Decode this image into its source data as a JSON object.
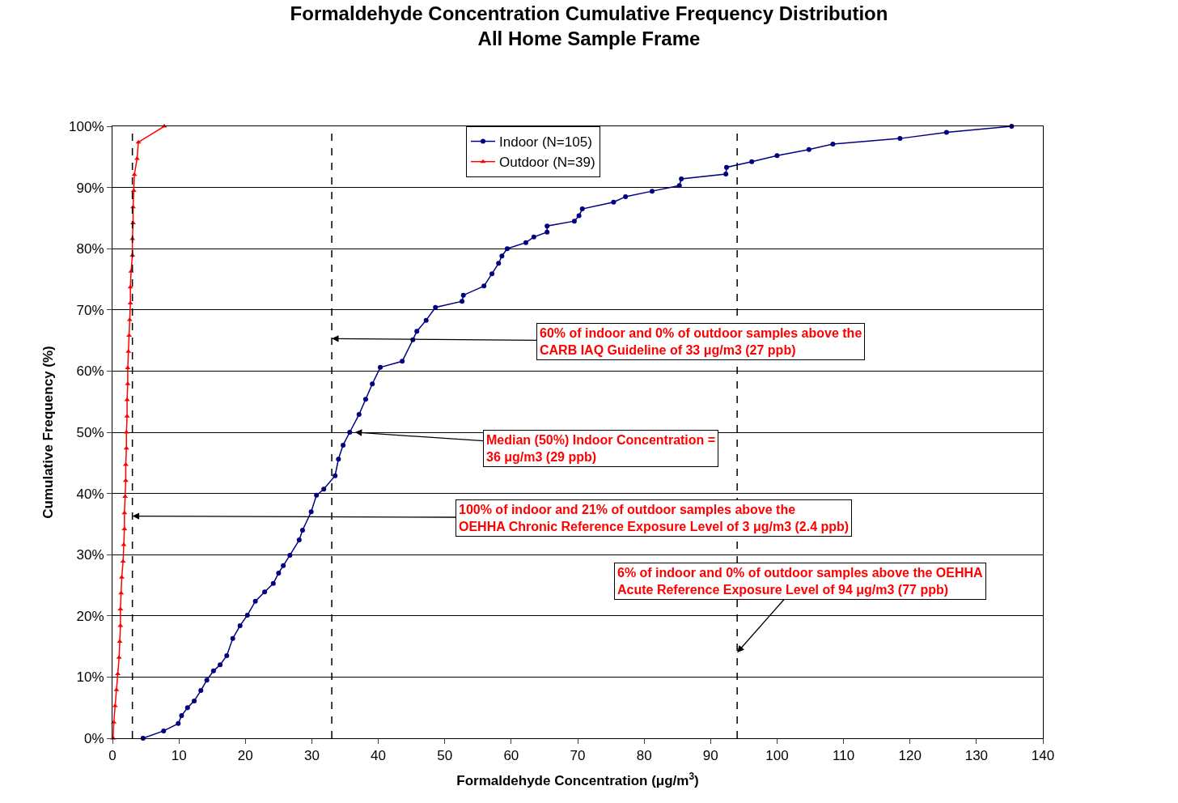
{
  "chart_data": {
    "type": "line",
    "title": "Formaldehyde Concentration Cumulative Frequency Distribution\nAll Home Sample Frame",
    "xlabel": "Formaldehyde Concentration (μg/m$^{3}$)",
    "ylabel": "Cumulative Frequency (%)",
    "series": [
      {
        "name": "Indoor (N=105)",
        "color": "#000080",
        "marker": "circle",
        "x": [
          4.6,
          7.7,
          9.9,
          10.4,
          11.3,
          12.3,
          13.3,
          14.2,
          15.2,
          16.2,
          17.2,
          18.1,
          19.2,
          20.3,
          21.5,
          22.9,
          24.2,
          25.0,
          25.7,
          26.7,
          28.1,
          28.6,
          29.9,
          30.7,
          31.8,
          33.5,
          34.0,
          34.7,
          35.7,
          37.1,
          38.1,
          39.1,
          40.3,
          43.6,
          45.2,
          45.8,
          47.2,
          48.6,
          52.6,
          52.8,
          55.9,
          57.1,
          58.1,
          58.6,
          59.4,
          62.2,
          63.4,
          65.4,
          65.4,
          69.5,
          70.2,
          70.7,
          75.4,
          77.2,
          81.2,
          85.3,
          85.6,
          92.3,
          92.4,
          96.2,
          100.0,
          104.8,
          108.4,
          118.5,
          125.5,
          135.3
        ],
        "values": [
          0,
          1.2,
          2.4,
          3.7,
          5.0,
          6.1,
          7.8,
          9.5,
          11.0,
          12.0,
          13.5,
          16.3,
          18.4,
          20.1,
          22.4,
          23.9,
          25.3,
          27.0,
          28.2,
          29.9,
          32.4,
          34.0,
          37.0,
          39.7,
          40.7,
          42.9,
          45.6,
          47.9,
          50.0,
          52.9,
          55.4,
          57.9,
          60.6,
          61.6,
          65.1,
          66.5,
          68.3,
          70.4,
          71.4,
          72.4,
          73.9,
          75.9,
          77.6,
          78.8,
          80.0,
          81.0,
          81.9,
          82.7,
          83.7,
          84.5,
          85.4,
          86.5,
          87.6,
          88.5,
          89.4,
          90.3,
          91.4,
          92.2,
          93.3,
          94.2,
          95.2,
          96.2,
          97.1,
          98.0,
          99.0,
          100
        ]
      },
      {
        "name": "Outdoor (N=39)",
        "color": "#ff0000",
        "marker": "triangle",
        "x": [
          0.1,
          0.2,
          0.4,
          0.6,
          0.8,
          1.0,
          1.1,
          1.2,
          1.2,
          1.3,
          1.4,
          1.6,
          1.7,
          1.8,
          1.8,
          1.9,
          2.0,
          2.0,
          2.1,
          2.1,
          2.2,
          2.2,
          2.3,
          2.3,
          2.4,
          2.5,
          2.6,
          2.7,
          2.7,
          2.8,
          3.0,
          3.0,
          3.1,
          3.1,
          3.2,
          3.3,
          3.7,
          3.9,
          7.8
        ],
        "values": [
          0,
          2.6,
          5.3,
          7.9,
          10.5,
          13.2,
          15.8,
          18.4,
          21.1,
          23.7,
          26.3,
          28.9,
          31.6,
          34.2,
          36.8,
          39.5,
          42.1,
          44.7,
          47.4,
          50.0,
          52.6,
          55.3,
          57.9,
          60.5,
          63.2,
          65.8,
          68.4,
          71.1,
          73.7,
          76.3,
          78.9,
          81.6,
          84.2,
          86.8,
          89.5,
          92.1,
          94.7,
          97.4,
          100
        ]
      }
    ],
    "xlim": [
      0,
      140
    ],
    "xticks": [
      0,
      10,
      20,
      30,
      40,
      50,
      60,
      70,
      80,
      90,
      100,
      110,
      120,
      130,
      140
    ],
    "ylim": [
      0,
      100
    ],
    "yticks": [
      {
        "value": 0,
        "label": "0%"
      },
      {
        "value": 10,
        "label": "10%"
      },
      {
        "value": 20,
        "label": "20%"
      },
      {
        "value": 30,
        "label": "30%"
      },
      {
        "value": 40,
        "label": "40%"
      },
      {
        "value": 50,
        "label": "50%"
      },
      {
        "value": 60,
        "label": "60%"
      },
      {
        "value": 70,
        "label": "70%"
      },
      {
        "value": 80,
        "label": "80%"
      },
      {
        "value": 90,
        "label": "90%"
      },
      {
        "value": 100,
        "label": "100%"
      }
    ],
    "grid": "y",
    "legend": "top",
    "ref_lines": [
      {
        "axis": "x",
        "value": 3,
        "color": "#000000",
        "line_style": "dashed"
      },
      {
        "axis": "x",
        "value": 33,
        "color": "#000000",
        "line_style": "dashed"
      },
      {
        "axis": "x",
        "value": 94,
        "color": "#000000",
        "line_style": "dashed"
      }
    ],
    "annotations": [
      {
        "text": "60% of indoor and 0% of outdoor samples above the\nCARB IAQ Guideline of 33 μg/m3 (27 ppb)",
        "x": 33,
        "y": 65.3
      },
      {
        "text": "Median (50%) Indoor Concentration =\n36 μg/m3 (29 ppb)",
        "x": 36.5,
        "y": 50
      },
      {
        "text": "100% of indoor and 21% of outdoor samples above the\nOEHHA Chronic Reference Exposure Level of 3 μg/m3 (2.4 ppb)",
        "x": 3,
        "y": 36.3
      },
      {
        "text": "6% of indoor and 0% of outdoor samples above the OEHHA\nAcute Reference Exposure Level of 94 μg/m3 (77 ppb)",
        "x": 94,
        "y": 14
      }
    ]
  }
}
